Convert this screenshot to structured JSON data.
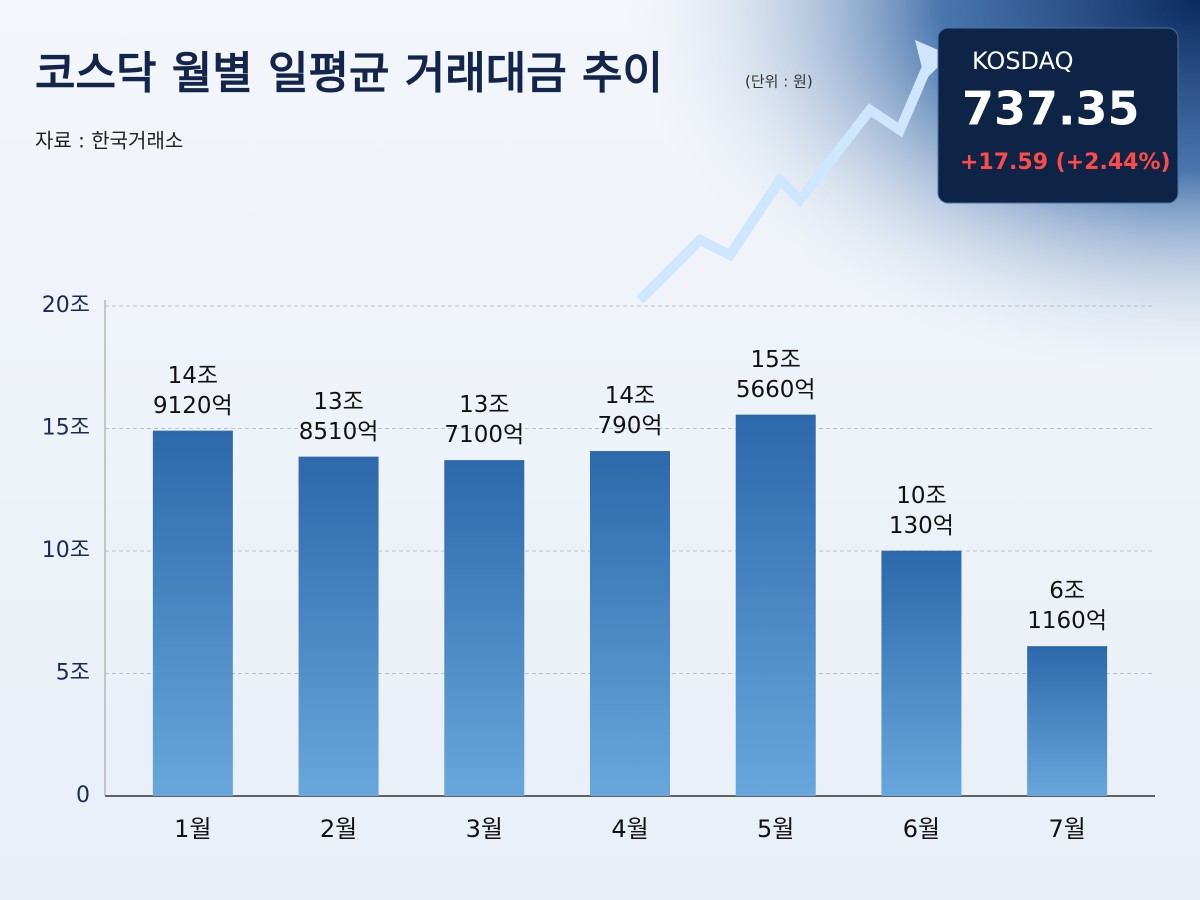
{
  "chart_data": {
    "type": "bar",
    "title": "코스닥 월별 일평균 거래대금 추이",
    "unit_note": "(단위 : 원)",
    "source": "자료 : 한국거래소",
    "categories": [
      "1월",
      "2월",
      "3월",
      "4월",
      "5월",
      "6월",
      "7월"
    ],
    "values": [
      14.912,
      13.851,
      13.71,
      14.079,
      15.566,
      10.013,
      6.116
    ],
    "value_labels": [
      "14조\n9120억",
      "13조\n8510억",
      "13조\n7100억",
      "14조\n790억",
      "15조\n5660억",
      "10조\n130억",
      "6조\n1160억"
    ],
    "color": "#2c68ab",
    "ylim": [
      0,
      20
    ],
    "yticks": [
      0,
      {
        "value": 5,
        "label": "5조"
      },
      {
        "value": 10,
        "label": "10조"
      },
      {
        "value": 15,
        "label": "15조"
      },
      {
        "value": 20,
        "label": "20조"
      }
    ],
    "grid": true
  },
  "ticker": {
    "name": "KOSDAQ",
    "price": "737.35",
    "change": "+17.59 (+2.44%)"
  }
}
